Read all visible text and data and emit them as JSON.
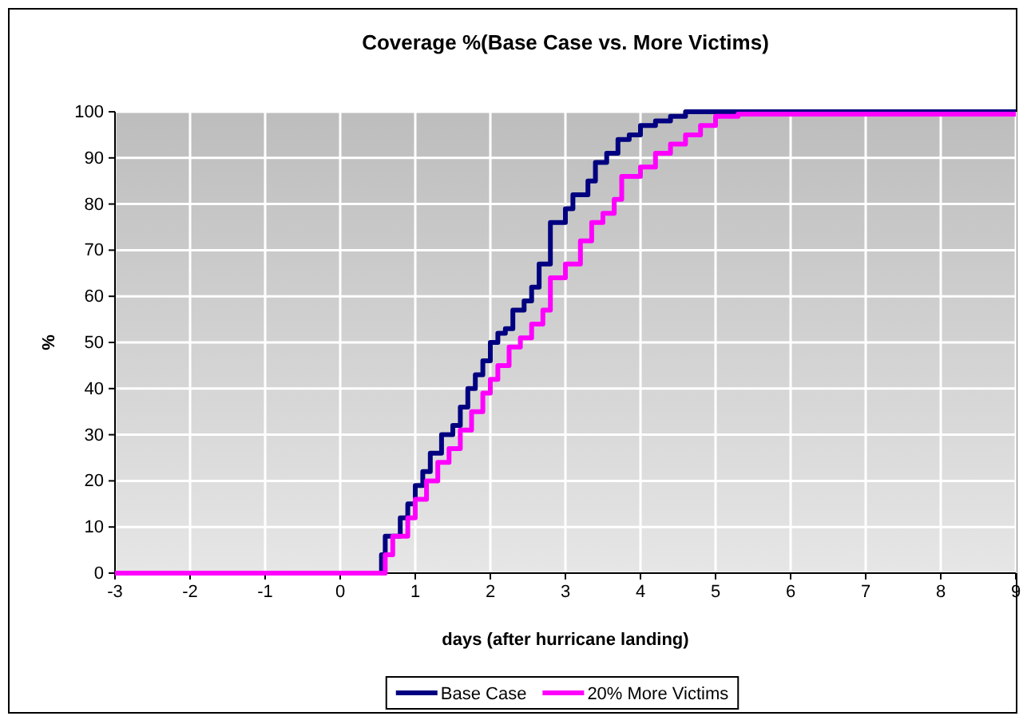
{
  "chart_data": {
    "type": "step",
    "title": "Coverage %(Base Case vs. More Victims)",
    "xlabel": "days (after hurricane landing)",
    "ylabel": "%",
    "xlim": [
      -3,
      9
    ],
    "xticks": [
      -3,
      -2,
      -1,
      0,
      1,
      2,
      3,
      4,
      5,
      6,
      7,
      8,
      9
    ],
    "ylim": [
      0,
      100
    ],
    "yticks": [
      0,
      10,
      20,
      30,
      40,
      50,
      60,
      70,
      80,
      90,
      100
    ],
    "grid": true,
    "legend": "bottom",
    "marker": "none",
    "line_style": "solid",
    "series": [
      {
        "name": "Base Case",
        "color": "#000080",
        "x": [
          -3,
          0.45,
          0.55,
          0.6,
          0.8,
          0.9,
          1.0,
          1.1,
          1.2,
          1.35,
          1.5,
          1.6,
          1.7,
          1.8,
          1.9,
          2.0,
          2.1,
          2.2,
          2.3,
          2.45,
          2.55,
          2.65,
          2.8,
          3.0,
          3.1,
          3.3,
          3.4,
          3.55,
          3.7,
          3.85,
          4.0,
          4.2,
          4.4,
          4.6,
          9
        ],
        "values": [
          0,
          0,
          4,
          8,
          12,
          15,
          19,
          22,
          26,
          30,
          32,
          36,
          40,
          43,
          46,
          50,
          52,
          53,
          57,
          59,
          62,
          67,
          76,
          79,
          82,
          85,
          89,
          91,
          94,
          95,
          97,
          98,
          99,
          100,
          100
        ]
      },
      {
        "name": "20% More Victims",
        "color": "#ff00ff",
        "x": [
          -3,
          0.5,
          0.6,
          0.7,
          0.9,
          1.0,
          1.15,
          1.3,
          1.45,
          1.6,
          1.75,
          1.9,
          2.0,
          2.1,
          2.25,
          2.4,
          2.55,
          2.7,
          2.8,
          3.0,
          3.2,
          3.35,
          3.5,
          3.65,
          3.75,
          4.0,
          4.2,
          4.4,
          4.6,
          4.8,
          5.0,
          5.3,
          9
        ],
        "values": [
          0,
          0,
          4,
          8,
          12,
          16,
          20,
          24,
          27,
          31,
          35,
          39,
          42,
          45,
          49,
          51,
          54,
          57,
          64,
          67,
          72,
          76,
          78,
          81,
          86,
          88,
          91,
          93,
          95,
          97,
          99,
          99.5,
          99.5
        ]
      }
    ]
  }
}
